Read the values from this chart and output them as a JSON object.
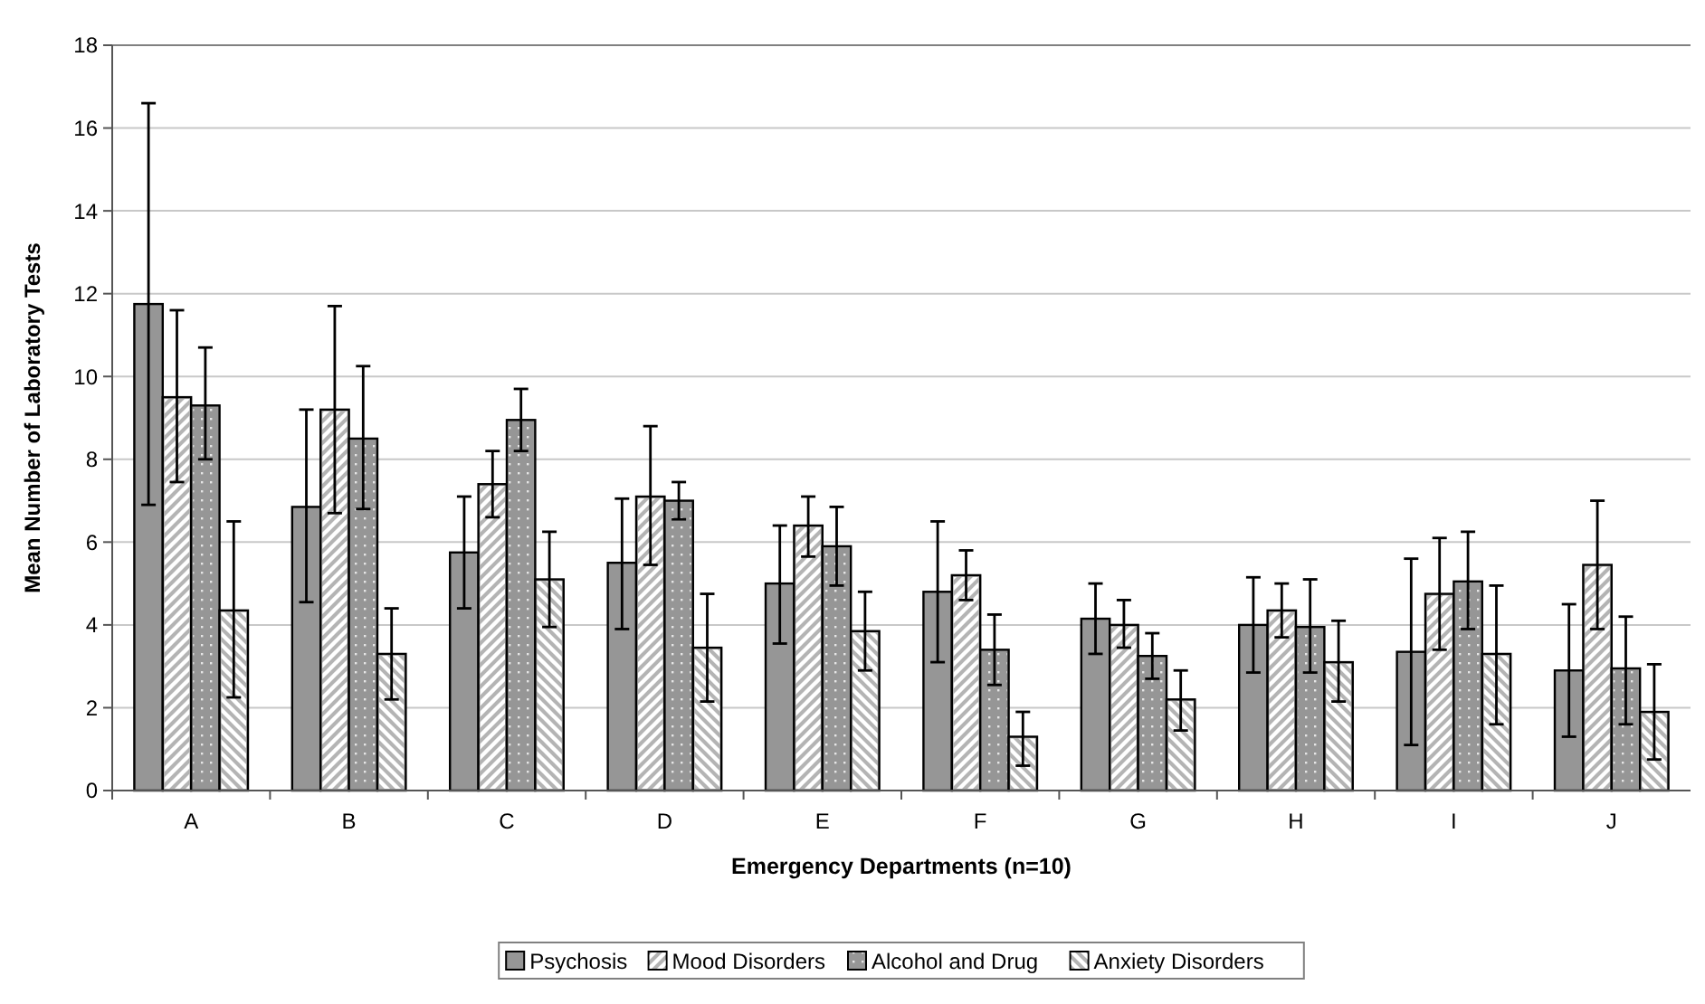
{
  "chart_data": {
    "type": "bar",
    "xlabel": "Emergency Departments (n=10)",
    "ylabel": "Mean Number of Laboratory Tests",
    "categories": [
      "A",
      "B",
      "C",
      "D",
      "E",
      "F",
      "G",
      "H",
      "I",
      "J"
    ],
    "ylim": [
      0,
      18
    ],
    "yticks": [
      0,
      2,
      4,
      6,
      8,
      10,
      12,
      14,
      16,
      18
    ],
    "grid": "y",
    "legend": "bottom",
    "series": [
      {
        "name": "Psychosis",
        "color": "#969696",
        "values": [
          11.75,
          6.85,
          5.75,
          5.5,
          5.0,
          4.8,
          4.15,
          4.0,
          3.35,
          2.9
        ],
        "errors": [
          [
            6.9,
            16.6
          ],
          [
            4.55,
            9.2
          ],
          [
            4.4,
            7.1
          ],
          [
            3.9,
            7.05
          ],
          [
            3.55,
            6.4
          ],
          [
            3.1,
            6.5
          ],
          [
            3.3,
            5.0
          ],
          [
            2.85,
            5.15
          ],
          [
            1.1,
            5.6
          ],
          [
            1.3,
            4.5
          ]
        ]
      },
      {
        "name": "Mood Disorders",
        "color": "#b4b4b4",
        "values": [
          9.5,
          9.2,
          7.4,
          7.1,
          6.4,
          5.2,
          4.0,
          4.35,
          4.75,
          5.45
        ],
        "errors": [
          [
            7.45,
            11.6
          ],
          [
            6.7,
            11.7
          ],
          [
            6.6,
            8.2
          ],
          [
            5.45,
            8.8
          ],
          [
            5.65,
            7.1
          ],
          [
            4.6,
            5.8
          ],
          [
            3.45,
            4.6
          ],
          [
            3.7,
            5.0
          ],
          [
            3.4,
            6.1
          ],
          [
            3.9,
            7.0
          ]
        ]
      },
      {
        "name": "Alcohol and Drug",
        "color": "#969696",
        "values": [
          9.3,
          8.5,
          8.95,
          7.0,
          5.9,
          3.4,
          3.25,
          3.95,
          5.05,
          2.95
        ],
        "errors": [
          [
            8.0,
            10.7
          ],
          [
            6.8,
            10.25
          ],
          [
            8.2,
            9.7
          ],
          [
            6.55,
            7.45
          ],
          [
            4.95,
            6.85
          ],
          [
            2.55,
            4.25
          ],
          [
            2.7,
            3.8
          ],
          [
            2.85,
            5.1
          ],
          [
            3.9,
            6.25
          ],
          [
            1.6,
            4.2
          ]
        ]
      },
      {
        "name": "Anxiety Disorders",
        "color": "#b4b4b4",
        "values": [
          4.35,
          3.3,
          5.1,
          3.45,
          3.85,
          1.3,
          2.2,
          3.1,
          3.3,
          1.9
        ],
        "errors": [
          [
            2.25,
            6.5
          ],
          [
            2.2,
            4.4
          ],
          [
            3.95,
            6.25
          ],
          [
            2.15,
            4.75
          ],
          [
            2.9,
            4.8
          ],
          [
            0.6,
            1.9
          ],
          [
            1.45,
            2.9
          ],
          [
            2.15,
            4.1
          ],
          [
            1.6,
            4.95
          ],
          [
            0.75,
            3.05
          ]
        ]
      }
    ]
  }
}
